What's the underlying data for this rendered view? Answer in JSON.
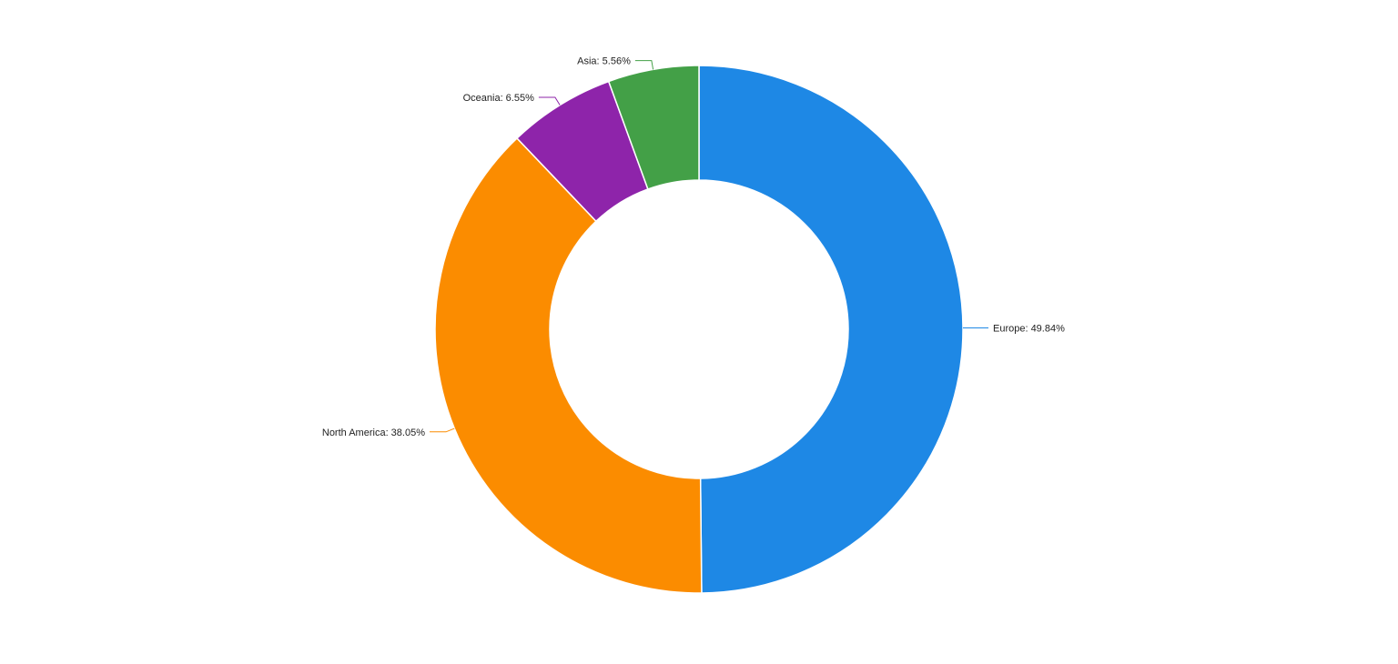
{
  "chart_data": {
    "type": "pie",
    "variant": "donut",
    "title": "",
    "slices": [
      {
        "label": "Europe",
        "value": 49.84,
        "display": "Europe: 49.84%",
        "color": "#1E88E5"
      },
      {
        "label": "North America",
        "value": 38.05,
        "display": "North America: 38.05%",
        "color": "#FB8C00"
      },
      {
        "label": "Oceania",
        "value": 6.55,
        "display": "Oceania: 6.55%",
        "color": "#8E24AA"
      },
      {
        "label": "Asia",
        "value": 5.56,
        "display": "Asia: 5.56%",
        "color": "#43A047"
      }
    ],
    "legend": "none",
    "labels": "outside-with-leaders"
  }
}
